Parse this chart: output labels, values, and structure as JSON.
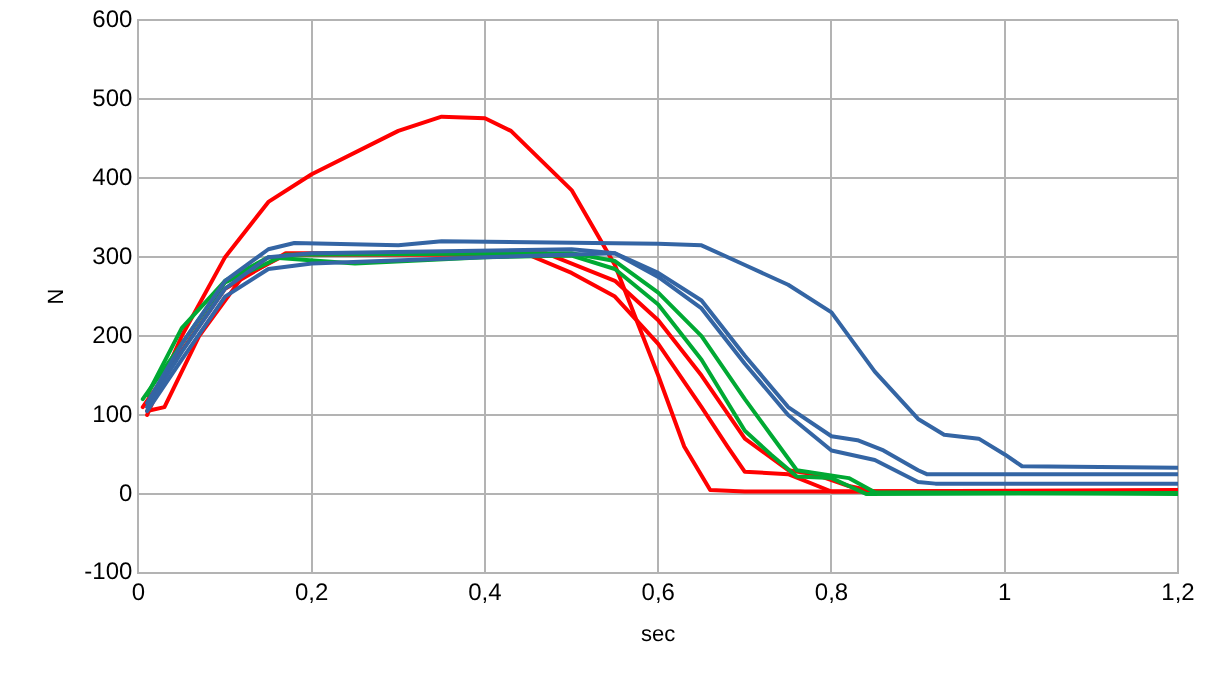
{
  "chart_data": {
    "type": "line",
    "xlabel": "sec",
    "ylabel": "N",
    "xlim": [
      0,
      1.2
    ],
    "ylim": [
      -100,
      600
    ],
    "xticks": [
      0,
      {
        "value": 0.2,
        "label": "0,2"
      },
      {
        "value": 0.4,
        "label": "0,4"
      },
      {
        "value": 0.6,
        "label": "0,6"
      },
      {
        "value": 0.8,
        "label": "0,8"
      },
      1,
      {
        "value": 1.2,
        "label": "1,2"
      }
    ],
    "yticks": [
      -100,
      0,
      100,
      200,
      300,
      400,
      500,
      600
    ],
    "grid": true,
    "legend": false,
    "marker": "none",
    "line_style": "solid",
    "series": [
      {
        "color": "#3465a4",
        "x": [
          0.01,
          0.05,
          0.1,
          0.15,
          0.18,
          0.3,
          0.35,
          0.6,
          0.65,
          0.7,
          0.75,
          0.8,
          0.85,
          0.9,
          0.93,
          0.97,
          1.0,
          1.02,
          1.2
        ],
        "values": [
          115,
          190,
          270,
          310,
          318,
          315,
          320,
          317,
          315,
          290,
          265,
          230,
          155,
          95,
          75,
          70,
          50,
          35,
          33
        ]
      },
      {
        "color": "#3465a4",
        "x": [
          0.01,
          0.05,
          0.1,
          0.15,
          0.2,
          0.5,
          0.55,
          0.6,
          0.65,
          0.7,
          0.75,
          0.8,
          0.83,
          0.86,
          0.9,
          0.91,
          1.2
        ],
        "values": [
          110,
          180,
          260,
          300,
          305,
          310,
          305,
          280,
          245,
          175,
          110,
          73,
          68,
          55,
          30,
          25,
          25
        ]
      },
      {
        "color": "#3465a4",
        "x": [
          0.01,
          0.05,
          0.1,
          0.15,
          0.2,
          0.4,
          0.55,
          0.6,
          0.65,
          0.7,
          0.75,
          0.8,
          0.85,
          0.9,
          0.92,
          1.2
        ],
        "values": [
          105,
          170,
          250,
          285,
          292,
          300,
          305,
          275,
          235,
          165,
          100,
          55,
          43,
          15,
          13,
          13
        ]
      },
      {
        "color": "#00a933",
        "x": [
          0.01,
          0.05,
          0.1,
          0.15,
          0.25,
          0.4,
          0.5,
          0.55,
          0.6,
          0.65,
          0.7,
          0.73,
          0.76,
          0.8,
          0.82,
          0.84,
          1.2
        ],
        "values": [
          125,
          210,
          270,
          300,
          292,
          300,
          302,
          285,
          240,
          170,
          80,
          50,
          22,
          20,
          10,
          0,
          1
        ]
      },
      {
        "color": "#00a933",
        "x": [
          0.005,
          0.1,
          0.17,
          0.5,
          0.55,
          0.6,
          0.65,
          0.7,
          0.73,
          0.76,
          0.82,
          0.85,
          1.2
        ],
        "values": [
          120,
          268,
          303,
          305,
          295,
          255,
          200,
          120,
          75,
          30,
          20,
          2,
          0
        ]
      },
      {
        "color": "#ff0000",
        "x": [
          0.01,
          0.03,
          0.07,
          0.12,
          0.17,
          0.45,
          0.5,
          0.55,
          0.6,
          0.65,
          0.68,
          0.7,
          0.75,
          0.8,
          1.2
        ],
        "values": [
          105,
          110,
          200,
          275,
          303,
          303,
          280,
          250,
          190,
          110,
          60,
          28,
          25,
          3,
          5
        ]
      },
      {
        "color": "#ff0000",
        "x": [
          0.005,
          0.1,
          0.17,
          0.47,
          0.55,
          0.6,
          0.65,
          0.7,
          0.75,
          0.78,
          0.82,
          0.85,
          1.2
        ],
        "values": [
          110,
          260,
          305,
          305,
          270,
          220,
          150,
          70,
          30,
          25,
          10,
          3,
          4
        ]
      },
      {
        "color": "#ff0000",
        "x": [
          0.01,
          0.05,
          0.1,
          0.15,
          0.2,
          0.3,
          0.35,
          0.4,
          0.43,
          0.5,
          0.55,
          0.6,
          0.63,
          0.66,
          0.7,
          1.2
        ],
        "values": [
          100,
          200,
          300,
          370,
          405,
          460,
          478,
          476,
          460,
          385,
          290,
          150,
          60,
          5,
          3,
          3
        ]
      }
    ]
  }
}
